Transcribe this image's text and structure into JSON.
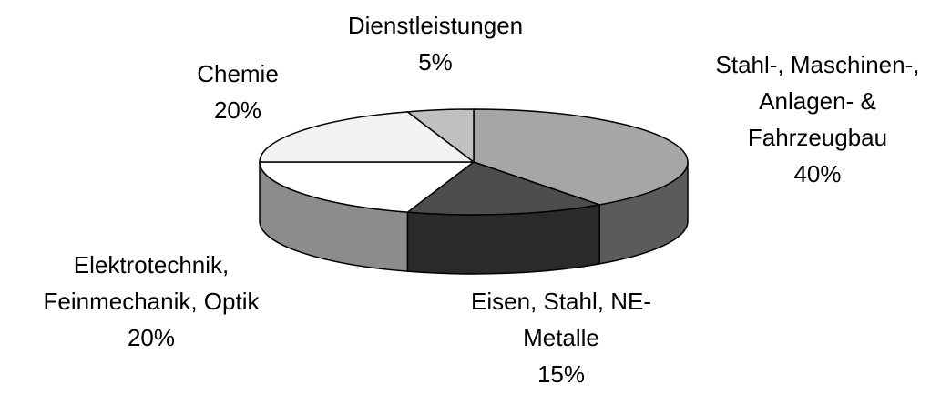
{
  "chart_data": {
    "type": "pie",
    "categories": [
      "Stahl-, Maschinen-, Anlagen- & Fahrzeugbau",
      "Eisen, Stahl, NE-Metalle",
      "Elektrotechnik, Feinmechanik, Optik",
      "Chemie",
      "Dienstleistungen"
    ],
    "values": [
      40,
      15,
      20,
      20,
      5
    ],
    "value_labels": [
      "40%",
      "15%",
      "20%",
      "20%",
      "5%"
    ],
    "colors": [
      "#a6a6a6",
      "#4d4d4d",
      "#ffffff",
      "#f2f2f2",
      "#c0c0c0"
    ]
  }
}
